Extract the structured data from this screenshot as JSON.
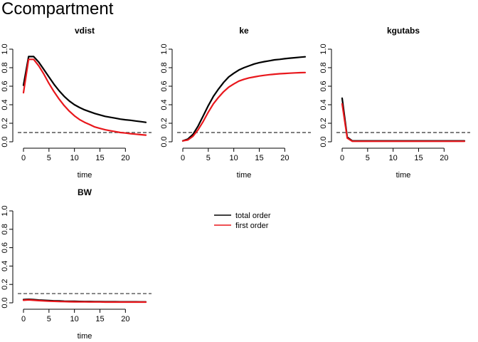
{
  "title": "Ccompartment",
  "legend": {
    "placement": "right",
    "entries": [
      {
        "label": "total order",
        "color": "#000000"
      },
      {
        "label": "first order",
        "color": "#e8171c"
      }
    ]
  },
  "chart_data": [
    {
      "type": "line",
      "title": "vdist",
      "xlabel": "time",
      "ylabel": "",
      "xlim": [
        0,
        24
      ],
      "ylim": [
        0,
        1
      ],
      "xticks": [
        0,
        5,
        10,
        15,
        20
      ],
      "yticks": [
        0.0,
        0.2,
        0.4,
        0.6,
        0.8,
        1.0
      ],
      "reference_line": 0.1,
      "x": [
        0,
        1,
        2,
        3,
        4,
        5,
        6,
        7,
        8,
        9,
        10,
        11,
        12,
        13,
        14,
        15,
        16,
        17,
        18,
        19,
        20,
        21,
        22,
        23,
        24
      ],
      "series": [
        {
          "name": "total order",
          "color": "#000000",
          "values": [
            0.61,
            0.92,
            0.92,
            0.86,
            0.78,
            0.7,
            0.62,
            0.55,
            0.49,
            0.44,
            0.4,
            0.37,
            0.345,
            0.325,
            0.305,
            0.29,
            0.275,
            0.265,
            0.255,
            0.245,
            0.238,
            0.232,
            0.225,
            0.218,
            0.21
          ]
        },
        {
          "name": "first order",
          "color": "#e8171c",
          "values": [
            0.53,
            0.89,
            0.89,
            0.82,
            0.73,
            0.63,
            0.54,
            0.46,
            0.39,
            0.33,
            0.28,
            0.24,
            0.21,
            0.185,
            0.16,
            0.145,
            0.13,
            0.12,
            0.11,
            0.1,
            0.095,
            0.088,
            0.082,
            0.077,
            0.072
          ]
        }
      ]
    },
    {
      "type": "line",
      "title": "ke",
      "xlabel": "time",
      "ylabel": "",
      "xlim": [
        0,
        24
      ],
      "ylim": [
        0,
        1
      ],
      "xticks": [
        0,
        5,
        10,
        15,
        20
      ],
      "yticks": [
        0.0,
        0.2,
        0.4,
        0.6,
        0.8,
        1.0
      ],
      "reference_line": 0.1,
      "x": [
        0,
        1,
        2,
        3,
        4,
        5,
        6,
        7,
        8,
        9,
        10,
        11,
        12,
        13,
        14,
        15,
        16,
        17,
        18,
        19,
        20,
        21,
        22,
        23,
        24
      ],
      "series": [
        {
          "name": "total order",
          "color": "#000000",
          "values": [
            0.01,
            0.03,
            0.08,
            0.17,
            0.28,
            0.39,
            0.49,
            0.57,
            0.64,
            0.7,
            0.74,
            0.775,
            0.8,
            0.82,
            0.84,
            0.855,
            0.865,
            0.875,
            0.885,
            0.89,
            0.897,
            0.903,
            0.908,
            0.913,
            0.918
          ]
        },
        {
          "name": "first order",
          "color": "#e8171c",
          "values": [
            0.01,
            0.02,
            0.06,
            0.13,
            0.22,
            0.32,
            0.41,
            0.48,
            0.54,
            0.59,
            0.625,
            0.655,
            0.675,
            0.69,
            0.7,
            0.71,
            0.718,
            0.725,
            0.73,
            0.735,
            0.738,
            0.741,
            0.744,
            0.746,
            0.748
          ]
        }
      ]
    },
    {
      "type": "line",
      "title": "kgutabs",
      "xlabel": "time",
      "ylabel": "",
      "xlim": [
        0,
        24
      ],
      "ylim": [
        0,
        1
      ],
      "xticks": [
        0,
        5,
        10,
        15,
        20
      ],
      "yticks": [
        0.0,
        0.2,
        0.4,
        0.6,
        0.8,
        1.0
      ],
      "reference_line": 0.1,
      "x": [
        0,
        1,
        2,
        3,
        4,
        5,
        6,
        7,
        8,
        9,
        10,
        11,
        12,
        13,
        14,
        15,
        16,
        17,
        18,
        19,
        20,
        21,
        22,
        23,
        24
      ],
      "series": [
        {
          "name": "total order",
          "color": "#000000",
          "values": [
            0.47,
            0.05,
            0.01,
            0.01,
            0.01,
            0.01,
            0.01,
            0.01,
            0.01,
            0.01,
            0.01,
            0.01,
            0.01,
            0.01,
            0.01,
            0.01,
            0.01,
            0.01,
            0.01,
            0.01,
            0.01,
            0.01,
            0.01,
            0.01,
            0.01
          ]
        },
        {
          "name": "first order",
          "color": "#e8171c",
          "values": [
            0.41,
            0.04,
            0.005,
            0.005,
            0.005,
            0.005,
            0.005,
            0.005,
            0.005,
            0.005,
            0.005,
            0.005,
            0.005,
            0.005,
            0.005,
            0.005,
            0.005,
            0.005,
            0.005,
            0.005,
            0.005,
            0.005,
            0.005,
            0.005,
            0.005
          ]
        }
      ]
    },
    {
      "type": "line",
      "title": "BW",
      "xlabel": "time",
      "ylabel": "",
      "xlim": [
        0,
        24
      ],
      "ylim": [
        0,
        1
      ],
      "xticks": [
        0,
        5,
        10,
        15,
        20
      ],
      "yticks": [
        0.0,
        0.2,
        0.4,
        0.6,
        0.8,
        1.0
      ],
      "reference_line": 0.1,
      "x": [
        0,
        1,
        2,
        3,
        4,
        5,
        6,
        7,
        8,
        9,
        10,
        11,
        12,
        13,
        14,
        15,
        16,
        17,
        18,
        19,
        20,
        21,
        22,
        23,
        24
      ],
      "series": [
        {
          "name": "total order",
          "color": "#000000",
          "values": [
            0.035,
            0.038,
            0.035,
            0.03,
            0.027,
            0.024,
            0.022,
            0.02,
            0.018,
            0.017,
            0.016,
            0.015,
            0.014,
            0.014,
            0.013,
            0.013,
            0.012,
            0.012,
            0.012,
            0.011,
            0.011,
            0.011,
            0.011,
            0.01,
            0.01
          ]
        },
        {
          "name": "first order",
          "color": "#e8171c",
          "values": [
            0.028,
            0.032,
            0.028,
            0.024,
            0.021,
            0.018,
            0.016,
            0.014,
            0.013,
            0.012,
            0.011,
            0.01,
            0.01,
            0.009,
            0.009,
            0.009,
            0.008,
            0.008,
            0.008,
            0.008,
            0.008,
            0.008,
            0.008,
            0.008,
            0.008
          ]
        }
      ]
    }
  ]
}
